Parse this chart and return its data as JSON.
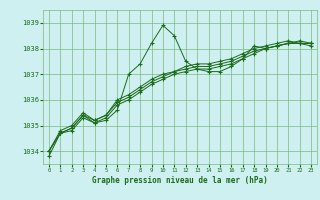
{
  "title": "Graphe pression niveau de la mer (hPa)",
  "background_color": "#cff0f0",
  "grid_color": "#7db87d",
  "line_color": "#1a6b1a",
  "ylim": [
    1033.5,
    1039.5
  ],
  "xlim": [
    -0.5,
    23.5
  ],
  "yticks": [
    1034,
    1035,
    1036,
    1037,
    1038,
    1039
  ],
  "xticks": [
    0,
    1,
    2,
    3,
    4,
    5,
    6,
    7,
    8,
    9,
    10,
    11,
    12,
    13,
    14,
    15,
    16,
    17,
    18,
    19,
    20,
    21,
    22,
    23
  ],
  "series": [
    [
      1033.8,
      1034.7,
      1034.8,
      1035.3,
      1035.1,
      1035.2,
      1035.6,
      1037.0,
      1037.4,
      1038.2,
      1038.9,
      1038.5,
      1037.5,
      1037.2,
      1037.1,
      1037.1,
      1037.3,
      1037.6,
      1038.1,
      1038.0,
      1038.1,
      1038.2,
      1038.2,
      1038.1
    ],
    [
      1034.0,
      1034.7,
      1034.9,
      1035.4,
      1035.1,
      1035.3,
      1035.8,
      1036.0,
      1036.3,
      1036.6,
      1036.8,
      1037.0,
      1037.1,
      1037.2,
      1037.2,
      1037.3,
      1037.4,
      1037.6,
      1037.8,
      1038.0,
      1038.1,
      1038.2,
      1038.2,
      1038.2
    ],
    [
      1034.0,
      1034.7,
      1034.9,
      1035.4,
      1035.2,
      1035.4,
      1035.9,
      1036.1,
      1036.4,
      1036.7,
      1036.9,
      1037.1,
      1037.2,
      1037.3,
      1037.3,
      1037.4,
      1037.5,
      1037.7,
      1037.9,
      1038.0,
      1038.1,
      1038.2,
      1038.3,
      1038.2
    ],
    [
      1034.0,
      1034.8,
      1035.0,
      1035.5,
      1035.2,
      1035.4,
      1036.0,
      1036.2,
      1036.5,
      1036.8,
      1037.0,
      1037.1,
      1037.3,
      1037.4,
      1037.4,
      1037.5,
      1037.6,
      1037.8,
      1038.0,
      1038.1,
      1038.2,
      1038.3,
      1038.2,
      1038.2
    ]
  ]
}
